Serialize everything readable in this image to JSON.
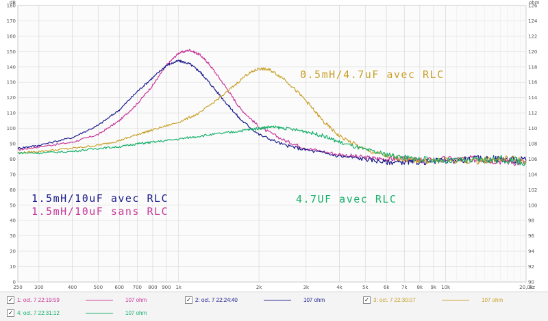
{
  "chart_data": {
    "type": "line",
    "x_scale": "log",
    "xlim": [
      250,
      20000
    ],
    "ylim_left": [
      0,
      180
    ],
    "ylim_right": [
      90,
      126
    ],
    "left_unit": "dB",
    "right_unit": "ohm",
    "x_unit": "Hz",
    "grid": true,
    "x_ticks": [
      {
        "v": 250,
        "label": "250"
      },
      {
        "v": 300,
        "label": "300"
      },
      {
        "v": 400,
        "label": "400"
      },
      {
        "v": 500,
        "label": "500"
      },
      {
        "v": 600,
        "label": "600"
      },
      {
        "v": 700,
        "label": "700"
      },
      {
        "v": 800,
        "label": "800"
      },
      {
        "v": 900,
        "label": "900"
      },
      {
        "v": 1000,
        "label": "1k"
      },
      {
        "v": 2000,
        "label": "2k"
      },
      {
        "v": 3000,
        "label": "3k"
      },
      {
        "v": 4000,
        "label": "4k"
      },
      {
        "v": 5000,
        "label": "5k"
      },
      {
        "v": 6000,
        "label": "6k"
      },
      {
        "v": 7000,
        "label": "7k"
      },
      {
        "v": 8000,
        "label": "8k"
      },
      {
        "v": 9000,
        "label": "9k"
      },
      {
        "v": 10000,
        "label": "10k"
      },
      {
        "v": 20000,
        "label": "20,0k"
      }
    ],
    "y_ticks_left": [
      0,
      10,
      20,
      30,
      40,
      50,
      60,
      70,
      80,
      90,
      100,
      110,
      120,
      130,
      140,
      150,
      160,
      170,
      180
    ],
    "y_ticks_right": [
      90,
      92,
      94,
      96,
      98,
      100,
      102,
      104,
      106,
      108,
      110,
      112,
      114,
      116,
      118,
      120,
      122,
      124,
      126
    ],
    "series": [
      {
        "name": "1: oct. 7 22:19:59",
        "color": "#c8379a",
        "x": [
          250,
          300,
          400,
          500,
          600,
          700,
          800,
          900,
          1000,
          1100,
          1200,
          1300,
          1500,
          1700,
          2000,
          2500,
          3000,
          4000,
          5000,
          6000,
          7000,
          8000,
          10000,
          13000,
          16000,
          20000
        ],
        "y": [
          86,
          88,
          91,
          96,
          105,
          116,
          128,
          141,
          149,
          151,
          148,
          142,
          127,
          113,
          101,
          92,
          87,
          83,
          81,
          80,
          80,
          79,
          80,
          80,
          79,
          78
        ]
      },
      {
        "name": "2: oct. 7 22:24:40",
        "color": "#1a1a8c",
        "x": [
          250,
          300,
          400,
          500,
          600,
          700,
          800,
          900,
          1000,
          1100,
          1200,
          1300,
          1500,
          1700,
          2000,
          2500,
          3000,
          4000,
          5000,
          6000,
          7000,
          8000,
          10000,
          13000,
          16000,
          20000
        ],
        "y": [
          87,
          89,
          94,
          102,
          112,
          124,
          133,
          141,
          144,
          142,
          137,
          130,
          117,
          106,
          96,
          89,
          86,
          82,
          80,
          78,
          78,
          78,
          79,
          80,
          80,
          79
        ]
      },
      {
        "name": "3: oct. 7 22:30:07",
        "color": "#c9a02a",
        "x": [
          250,
          300,
          400,
          500,
          600,
          700,
          800,
          1000,
          1200,
          1500,
          1800,
          2000,
          2200,
          2500,
          3000,
          3500,
          4000,
          5000,
          6000,
          7000,
          8000,
          10000,
          13000,
          16000,
          20000
        ],
        "y": [
          84,
          85,
          87,
          89,
          92,
          96,
          99,
          104,
          110,
          123,
          135,
          139,
          138,
          132,
          118,
          104,
          95,
          86,
          82,
          80,
          79,
          79,
          79,
          80,
          79
        ]
      },
      {
        "name": "4: oct. 7 22:31:12",
        "color": "#17b06a",
        "x": [
          250,
          300,
          400,
          500,
          600,
          700,
          800,
          1000,
          1200,
          1500,
          1800,
          2000,
          2200,
          2500,
          3000,
          3500,
          4000,
          5000,
          6000,
          7000,
          8000,
          10000,
          13000,
          16000,
          20000
        ],
        "y": [
          84,
          84,
          85,
          87,
          88,
          90,
          91,
          93,
          95,
          97,
          99,
          100,
          101,
          100,
          98,
          95,
          91,
          86,
          83,
          81,
          80,
          79,
          79,
          80,
          78
        ]
      }
    ],
    "annotations": [
      {
        "text": "1.5mH/10uF avec RLC",
        "color": "#1a1a8c"
      },
      {
        "text": "1.5mH/10uF sans RLC",
        "color": "#c8379a"
      },
      {
        "text": "0.5mH/4.7uF avec RLC",
        "color": "#c9a02a"
      },
      {
        "text": "4.7UF avec RLC",
        "color": "#17b06a"
      }
    ]
  },
  "legend": [
    {
      "label": "1: oct. 7 22:19:59",
      "ohm": "107 ohm",
      "color": "#c8379a",
      "checked": "✓"
    },
    {
      "label": "2: oct. 7 22:24:40",
      "ohm": "107 ohm",
      "color": "#1a1a8c",
      "checked": "✓"
    },
    {
      "label": "3: oct. 7 22:30:07",
      "ohm": "107 ohm",
      "color": "#c9a02a",
      "checked": "✓"
    },
    {
      "label": "4: oct. 7 22:31:12",
      "ohm": "107 ohm",
      "color": "#17b06a",
      "checked": "✓"
    }
  ]
}
